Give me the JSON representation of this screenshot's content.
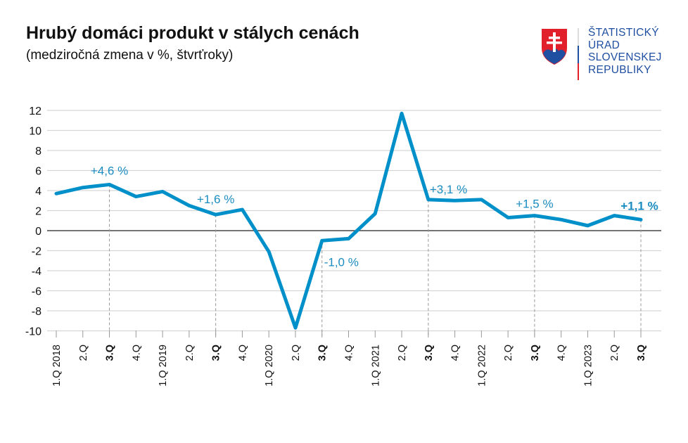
{
  "header": {
    "title": "Hrubý domáci produkt v stálych cenách",
    "subtitle": "(medziročná zmena v %, štvrťroky)"
  },
  "logo": {
    "lines": [
      "ŠTATISTICKÝ",
      "ÚRAD",
      "SLOVENSKEJ",
      "REPUBLIKY"
    ],
    "colors": {
      "red": "#e2202c",
      "blue": "#1f4fa0"
    }
  },
  "chart_data": {
    "type": "line",
    "title": "Hrubý domáci produkt v stálych cenách",
    "subtitle": "(medziročná zmena v %, štvrťroky)",
    "categories": [
      "1.Q 2018",
      "2.Q",
      "3.Q",
      "4.Q",
      "1.Q 2019",
      "2.Q",
      "3.Q",
      "4.Q",
      "1.Q 2020",
      "2.Q",
      "3.Q",
      "4.Q",
      "1.Q 2021",
      "2.Q",
      "3.Q",
      "4.Q",
      "1.Q 2022",
      "2.Q",
      "3.Q",
      "4.Q",
      "1.Q 2023",
      "2.Q",
      "3.Q"
    ],
    "bold_categories": [
      2,
      6,
      10,
      14,
      18,
      22
    ],
    "series": [
      {
        "values": [
          3.7,
          4.3,
          4.6,
          3.4,
          3.9,
          2.5,
          1.6,
          2.1,
          -2.1,
          -9.7,
          -1.0,
          -0.8,
          1.7,
          11.7,
          3.1,
          3.0,
          3.1,
          1.3,
          1.5,
          1.1,
          0.5,
          1.5,
          1.1
        ],
        "color": "#0090c9"
      }
    ],
    "annotations": [
      {
        "index": 2,
        "text": "+4,6 %"
      },
      {
        "index": 6,
        "text": "+1,6 %"
      },
      {
        "index": 10,
        "text": "-1,0 %"
      },
      {
        "index": 14,
        "text": "+3,1 %"
      },
      {
        "index": 18,
        "text": "+1,5 %"
      },
      {
        "index": 22,
        "text": "+1,1 %",
        "bold": true
      }
    ],
    "yticks": [
      "12",
      "10",
      "8",
      "6",
      "4",
      "2",
      "0",
      "-2",
      "-4",
      "-6",
      "-8",
      "-10"
    ],
    "ylim": [
      -10,
      12
    ],
    "grid": true
  }
}
